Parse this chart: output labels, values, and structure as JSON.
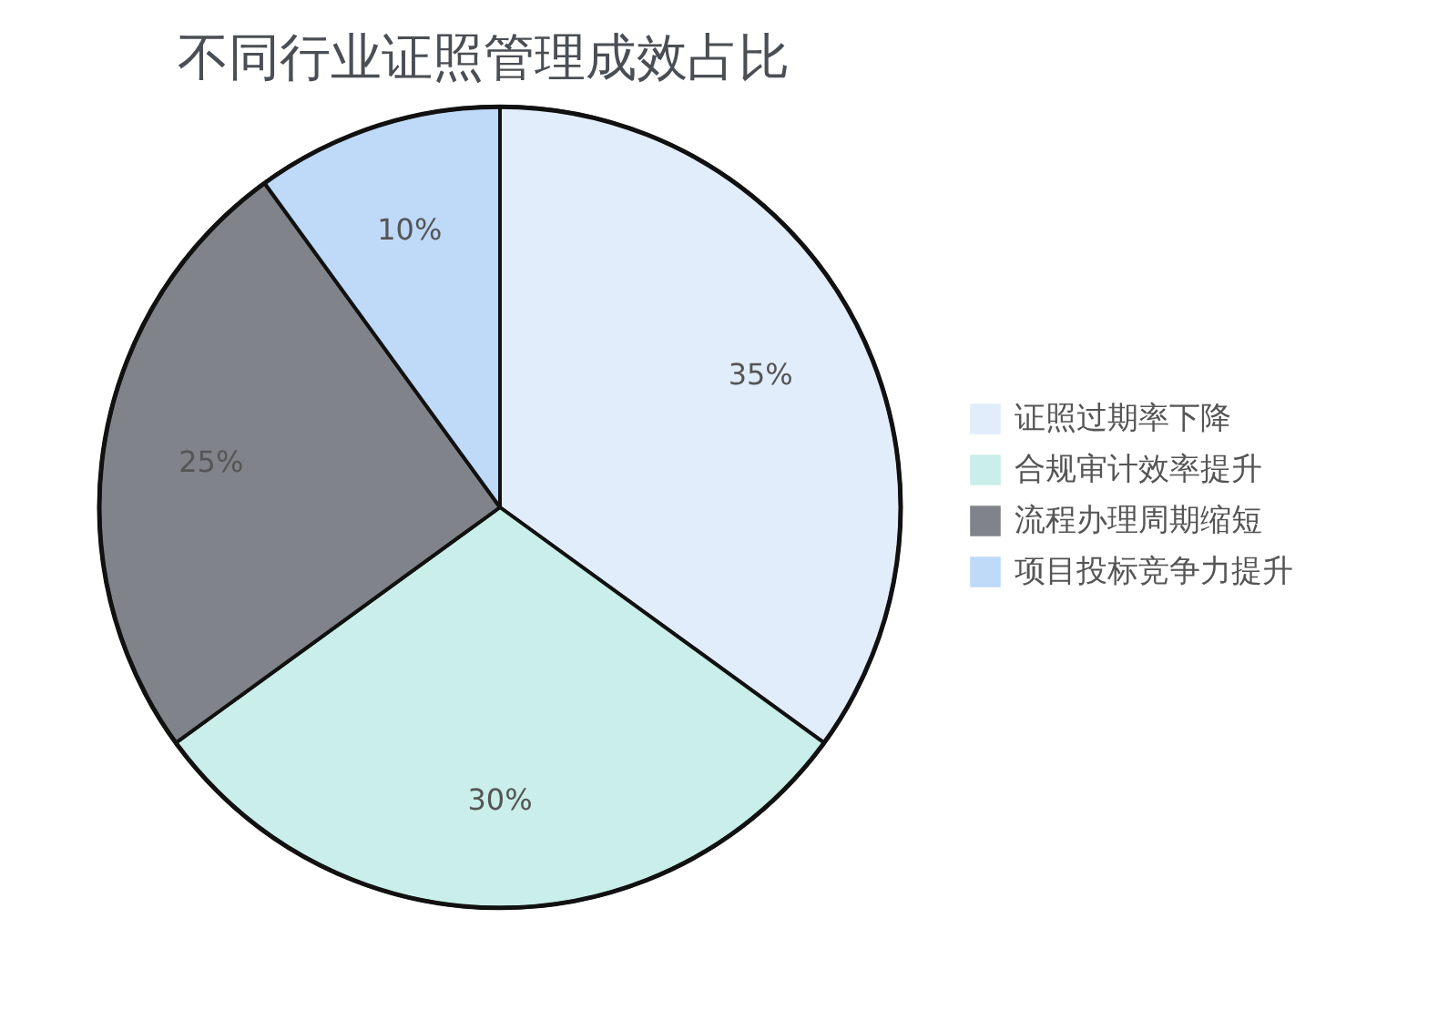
{
  "chart_data": {
    "type": "pie",
    "title": "不同行业证照管理成效占比",
    "categories": [
      "证照过期率下降",
      "合规审计效率提升",
      "流程办理周期缩短",
      "项目投标竞争力提升"
    ],
    "values": [
      35,
      30,
      25,
      10
    ],
    "value_labels": [
      "35%",
      "30%",
      "25%",
      "10%"
    ],
    "colors": [
      "#e2edfc",
      "#caeee9",
      "#80848a",
      "#bfd9f8"
    ],
    "legend": "right"
  }
}
